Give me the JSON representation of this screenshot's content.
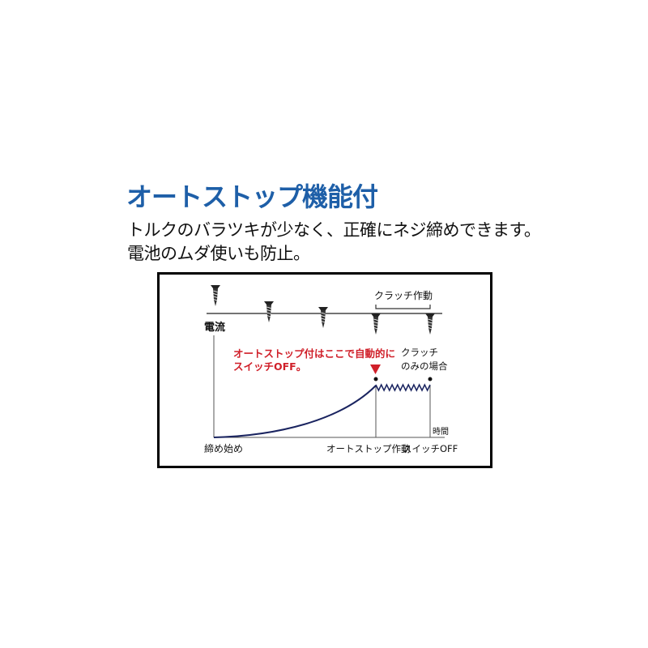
{
  "heading": {
    "title": "オートストップ機能付",
    "line1": "トルクのバラツキが少なく、正確にネジ締めできます。",
    "line2": "電池のムダ使いも防止。"
  },
  "diagram": {
    "clutch_active_label": "クラッチ作動",
    "y_axis_label": "電流",
    "x_axis_label": "時間",
    "auto_stop_note_line1": "オートストップ付はここで自動的に",
    "auto_stop_note_line2": "スイッチOFF。",
    "clutch_only_line1": "クラッチ",
    "clutch_only_line2": "のみの場合",
    "start_label": "締め始め",
    "auto_stop_label": "オートストップ作動",
    "switch_off_label": "スイッチOFF",
    "colors": {
      "title": "#1e5fa8",
      "note": "#d0202a",
      "curve": "#1a2460",
      "frame": "#000000"
    }
  }
}
